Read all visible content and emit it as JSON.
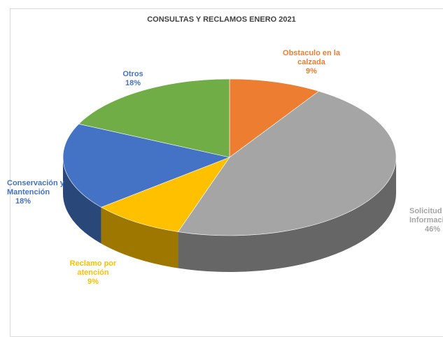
{
  "chart_data": {
    "type": "pie",
    "title": "CONSULTAS Y RECLAMOS ENERO 2021",
    "slices": [
      {
        "name": "Obstaculo en la calzada",
        "value": 9,
        "label": "9%",
        "color": "#ed7d31"
      },
      {
        "name": "Solicitud de Información",
        "value": 46,
        "label": "46%",
        "color": "#a5a5a5"
      },
      {
        "name": "Reclamo por atención",
        "value": 9,
        "label": "9%",
        "color": "#ffc000"
      },
      {
        "name": "Conservación y Mantención",
        "value": 18,
        "label": "18%",
        "color": "#4472c4"
      },
      {
        "name": "Otros",
        "value": 18,
        "label": "18%",
        "color": "#70ad47"
      }
    ],
    "labels": {
      "obstaculo_line1": "Obstaculo en la",
      "obstaculo_line2": "calzada",
      "solicitud_line1": "Solicitud de",
      "solicitud_line2": "Información",
      "reclamo_line1": "Reclamo por",
      "reclamo_line2": "atención",
      "conservacion_line1": "Conservación y",
      "conservacion_line2": "Mantención",
      "otros_line1": "Otros"
    },
    "style": "3d-pie",
    "legend": "none"
  }
}
